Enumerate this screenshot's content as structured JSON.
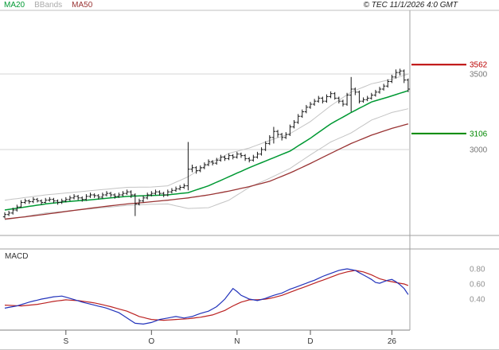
{
  "header": {
    "copyright": "© TEC 11/1/2026 4:0 GMT"
  },
  "legend": {
    "items": [
      {
        "label": "MA20",
        "color": "#009933"
      },
      {
        "label": "BBands",
        "color": "#aaaaaa"
      },
      {
        "label": "MA50",
        "color": "#993333"
      }
    ],
    "position": "top-left"
  },
  "chart_data": {
    "type": "candlestick",
    "title": "",
    "xlabel": "",
    "ylabel": "",
    "grid": true,
    "x_axis": {
      "ticks": [
        {
          "label": "S",
          "index": 15
        },
        {
          "label": "O",
          "index": 36
        },
        {
          "label": "N",
          "index": 57
        },
        {
          "label": "D",
          "index": 75
        },
        {
          "label": "26",
          "index": 95
        }
      ]
    },
    "price_panel": {
      "ylim": [
        2450,
        3940
      ],
      "gridlines": [
        3000,
        3500
      ],
      "colors": {
        "ma20": "#009933",
        "ma50": "#993333",
        "bbands": "#c4c4c4",
        "bars": "#1a1a1a"
      },
      "grid_labels": [
        {
          "text": "3562",
          "value": 3562,
          "color": "#bb0000",
          "line": true
        },
        {
          "text": "3500",
          "value": 3500,
          "color": "#777777",
          "line": false
        },
        {
          "text": "3106",
          "value": 3106,
          "color": "#008800",
          "line": true
        },
        {
          "text": "3000",
          "value": 3000,
          "color": "#777777",
          "line": false
        }
      ],
      "ohlc": [
        [
          2555,
          2585,
          2545,
          2570
        ],
        [
          2570,
          2595,
          2560,
          2580
        ],
        [
          2580,
          2615,
          2570,
          2600
        ],
        [
          2600,
          2635,
          2590,
          2620
        ],
        [
          2620,
          2665,
          2615,
          2650
        ],
        [
          2650,
          2675,
          2640,
          2660
        ],
        [
          2660,
          2670,
          2640,
          2655
        ],
        [
          2655,
          2685,
          2645,
          2670
        ],
        [
          2670,
          2680,
          2650,
          2660
        ],
        [
          2660,
          2670,
          2635,
          2650
        ],
        [
          2650,
          2680,
          2645,
          2665
        ],
        [
          2665,
          2685,
          2655,
          2670
        ],
        [
          2670,
          2680,
          2645,
          2660
        ],
        [
          2660,
          2670,
          2635,
          2650
        ],
        [
          2650,
          2675,
          2640,
          2660
        ],
        [
          2660,
          2685,
          2650,
          2670
        ],
        [
          2670,
          2695,
          2660,
          2680
        ],
        [
          2680,
          2705,
          2670,
          2690
        ],
        [
          2690,
          2700,
          2665,
          2680
        ],
        [
          2680,
          2690,
          2655,
          2670
        ],
        [
          2670,
          2705,
          2660,
          2690
        ],
        [
          2690,
          2715,
          2680,
          2700
        ],
        [
          2700,
          2710,
          2680,
          2695
        ],
        [
          2695,
          2705,
          2670,
          2685
        ],
        [
          2685,
          2715,
          2675,
          2700
        ],
        [
          2700,
          2725,
          2690,
          2710
        ],
        [
          2710,
          2720,
          2685,
          2700
        ],
        [
          2700,
          2710,
          2675,
          2690
        ],
        [
          2690,
          2715,
          2680,
          2700
        ],
        [
          2700,
          2725,
          2690,
          2710
        ],
        [
          2710,
          2735,
          2700,
          2720
        ],
        [
          2720,
          2730,
          2680,
          2700
        ],
        [
          2700,
          2710,
          2560,
          2640
        ],
        [
          2640,
          2675,
          2630,
          2660
        ],
        [
          2660,
          2695,
          2650,
          2680
        ],
        [
          2680,
          2715,
          2670,
          2700
        ],
        [
          2700,
          2725,
          2690,
          2710
        ],
        [
          2710,
          2735,
          2700,
          2720
        ],
        [
          2720,
          2730,
          2695,
          2710
        ],
        [
          2710,
          2720,
          2685,
          2700
        ],
        [
          2700,
          2735,
          2690,
          2720
        ],
        [
          2720,
          2745,
          2710,
          2730
        ],
        [
          2730,
          2755,
          2720,
          2740
        ],
        [
          2740,
          2765,
          2730,
          2750
        ],
        [
          2750,
          2775,
          2740,
          2760
        ],
        [
          2760,
          3050,
          2730,
          2870
        ],
        [
          2870,
          2900,
          2850,
          2880
        ],
        [
          2880,
          2890,
          2840,
          2860
        ],
        [
          2860,
          2895,
          2850,
          2880
        ],
        [
          2880,
          2915,
          2870,
          2900
        ],
        [
          2900,
          2935,
          2890,
          2920
        ],
        [
          2920,
          2930,
          2895,
          2910
        ],
        [
          2910,
          2945,
          2900,
          2930
        ],
        [
          2930,
          2965,
          2920,
          2950
        ],
        [
          2950,
          2960,
          2925,
          2940
        ],
        [
          2940,
          2975,
          2930,
          2960
        ],
        [
          2960,
          2970,
          2935,
          2950
        ],
        [
          2950,
          2985,
          2940,
          2970
        ],
        [
          2970,
          2980,
          2945,
          2960
        ],
        [
          2960,
          2970,
          2925,
          2940
        ],
        [
          2940,
          2950,
          2915,
          2930
        ],
        [
          2930,
          2965,
          2920,
          2950
        ],
        [
          2950,
          2985,
          2940,
          2970
        ],
        [
          2970,
          3015,
          2960,
          3000
        ],
        [
          3000,
          3055,
          2990,
          3040
        ],
        [
          3040,
          3095,
          3030,
          3080
        ],
        [
          3080,
          3150,
          3040,
          3120
        ],
        [
          3120,
          3130,
          3080,
          3100
        ],
        [
          3100,
          3110,
          3060,
          3080
        ],
        [
          3080,
          3115,
          3070,
          3100
        ],
        [
          3100,
          3165,
          3090,
          3150
        ],
        [
          3150,
          3195,
          3140,
          3180
        ],
        [
          3180,
          3235,
          3170,
          3220
        ],
        [
          3220,
          3265,
          3210,
          3250
        ],
        [
          3250,
          3295,
          3240,
          3280
        ],
        [
          3280,
          3315,
          3270,
          3300
        ],
        [
          3300,
          3335,
          3290,
          3320
        ],
        [
          3320,
          3355,
          3310,
          3340
        ],
        [
          3340,
          3350,
          3305,
          3320
        ],
        [
          3320,
          3365,
          3310,
          3350
        ],
        [
          3350,
          3385,
          3340,
          3370
        ],
        [
          3370,
          3380,
          3330,
          3340
        ],
        [
          3340,
          3350,
          3305,
          3320
        ],
        [
          3320,
          3330,
          3285,
          3300
        ],
        [
          3300,
          3375,
          3290,
          3360
        ],
        [
          3360,
          3480,
          3250,
          3400
        ],
        [
          3400,
          3410,
          3360,
          3380
        ],
        [
          3380,
          3390,
          3305,
          3320
        ],
        [
          3320,
          3345,
          3310,
          3330
        ],
        [
          3330,
          3355,
          3320,
          3340
        ],
        [
          3340,
          3375,
          3330,
          3360
        ],
        [
          3360,
          3395,
          3350,
          3380
        ],
        [
          3380,
          3415,
          3370,
          3400
        ],
        [
          3400,
          3435,
          3390,
          3420
        ],
        [
          3420,
          3465,
          3410,
          3450
        ],
        [
          3450,
          3495,
          3440,
          3480
        ],
        [
          3480,
          3530,
          3470,
          3510
        ],
        [
          3510,
          3535,
          3490,
          3520
        ],
        [
          3520,
          3530,
          3440,
          3460
        ],
        [
          3460,
          3470,
          3380,
          3400
        ]
      ],
      "ma20": [
        [
          0,
          2600
        ],
        [
          5,
          2620
        ],
        [
          10,
          2640
        ],
        [
          15,
          2655
        ],
        [
          20,
          2665
        ],
        [
          25,
          2678
        ],
        [
          30,
          2690
        ],
        [
          35,
          2695
        ],
        [
          40,
          2700
        ],
        [
          45,
          2715
        ],
        [
          50,
          2760
        ],
        [
          55,
          2820
        ],
        [
          60,
          2880
        ],
        [
          65,
          2935
        ],
        [
          70,
          2990
        ],
        [
          75,
          3075
        ],
        [
          80,
          3170
        ],
        [
          85,
          3245
        ],
        [
          90,
          3315
        ],
        [
          95,
          3355
        ],
        [
          99,
          3390
        ]
      ],
      "ma50": [
        [
          0,
          2540
        ],
        [
          5,
          2555
        ],
        [
          10,
          2572
        ],
        [
          15,
          2590
        ],
        [
          20,
          2608
        ],
        [
          25,
          2625
        ],
        [
          30,
          2640
        ],
        [
          35,
          2652
        ],
        [
          40,
          2665
        ],
        [
          45,
          2680
        ],
        [
          50,
          2700
        ],
        [
          55,
          2725
        ],
        [
          60,
          2755
        ],
        [
          65,
          2790
        ],
        [
          70,
          2845
        ],
        [
          75,
          2908
        ],
        [
          80,
          2975
        ],
        [
          85,
          3040
        ],
        [
          90,
          3095
        ],
        [
          95,
          3140
        ],
        [
          99,
          3170
        ]
      ],
      "bb_upper": [
        [
          0,
          2665
        ],
        [
          10,
          2700
        ],
        [
          20,
          2725
        ],
        [
          30,
          2750
        ],
        [
          36,
          2752
        ],
        [
          40,
          2760
        ],
        [
          45,
          2820
        ],
        [
          50,
          2905
        ],
        [
          55,
          2975
        ],
        [
          60,
          3010
        ],
        [
          65,
          3060
        ],
        [
          70,
          3105
        ],
        [
          75,
          3185
        ],
        [
          80,
          3290
        ],
        [
          85,
          3380
        ],
        [
          90,
          3435
        ],
        [
          95,
          3465
        ],
        [
          99,
          3500
        ]
      ],
      "bb_lower": [
        [
          0,
          2535
        ],
        [
          10,
          2580
        ],
        [
          20,
          2605
        ],
        [
          30,
          2630
        ],
        [
          36,
          2638
        ],
        [
          40,
          2640
        ],
        [
          45,
          2610
        ],
        [
          50,
          2615
        ],
        [
          55,
          2665
        ],
        [
          60,
          2750
        ],
        [
          65,
          2810
        ],
        [
          70,
          2875
        ],
        [
          75,
          2965
        ],
        [
          80,
          3050
        ],
        [
          85,
          3110
        ],
        [
          90,
          3195
        ],
        [
          95,
          3245
        ],
        [
          99,
          3270
        ]
      ]
    },
    "macd_panel": {
      "label": "MACD",
      "ylim": [
        0,
        1.05
      ],
      "colors": {
        "macd": "#2233bb",
        "signal": "#bb2222"
      },
      "scale_labels": [
        {
          "text": "0.80",
          "value": 0.8
        },
        {
          "text": "0.60",
          "value": 0.6
        },
        {
          "text": "0.40",
          "value": 0.4
        }
      ],
      "macd": [
        [
          0,
          0.28
        ],
        [
          3,
          0.31
        ],
        [
          6,
          0.36
        ],
        [
          9,
          0.4
        ],
        [
          12,
          0.43
        ],
        [
          14,
          0.44
        ],
        [
          16,
          0.41
        ],
        [
          19,
          0.36
        ],
        [
          22,
          0.32
        ],
        [
          25,
          0.28
        ],
        [
          28,
          0.22
        ],
        [
          30,
          0.15
        ],
        [
          32,
          0.08
        ],
        [
          34,
          0.07
        ],
        [
          36,
          0.09
        ],
        [
          38,
          0.13
        ],
        [
          40,
          0.15
        ],
        [
          42,
          0.17
        ],
        [
          44,
          0.15
        ],
        [
          46,
          0.17
        ],
        [
          48,
          0.21
        ],
        [
          50,
          0.24
        ],
        [
          52,
          0.3
        ],
        [
          54,
          0.4
        ],
        [
          56,
          0.54
        ],
        [
          57,
          0.5
        ],
        [
          58,
          0.45
        ],
        [
          60,
          0.4
        ],
        [
          62,
          0.38
        ],
        [
          64,
          0.41
        ],
        [
          66,
          0.45
        ],
        [
          68,
          0.48
        ],
        [
          70,
          0.53
        ],
        [
          72,
          0.57
        ],
        [
          74,
          0.61
        ],
        [
          76,
          0.65
        ],
        [
          78,
          0.7
        ],
        [
          80,
          0.74
        ],
        [
          82,
          0.78
        ],
        [
          84,
          0.8
        ],
        [
          86,
          0.78
        ],
        [
          88,
          0.72
        ],
        [
          90,
          0.66
        ],
        [
          91,
          0.62
        ],
        [
          92,
          0.61
        ],
        [
          93,
          0.63
        ],
        [
          94,
          0.65
        ],
        [
          95,
          0.66
        ],
        [
          96,
          0.63
        ],
        [
          97,
          0.59
        ],
        [
          98,
          0.54
        ],
        [
          99,
          0.46
        ]
      ],
      "signal": [
        [
          0,
          0.32
        ],
        [
          4,
          0.31
        ],
        [
          8,
          0.33
        ],
        [
          12,
          0.37
        ],
        [
          15,
          0.39
        ],
        [
          18,
          0.38
        ],
        [
          22,
          0.35
        ],
        [
          26,
          0.3
        ],
        [
          30,
          0.24
        ],
        [
          33,
          0.17
        ],
        [
          36,
          0.13
        ],
        [
          39,
          0.12
        ],
        [
          42,
          0.13
        ],
        [
          45,
          0.14
        ],
        [
          48,
          0.16
        ],
        [
          51,
          0.19
        ],
        [
          54,
          0.25
        ],
        [
          56,
          0.31
        ],
        [
          58,
          0.36
        ],
        [
          60,
          0.39
        ],
        [
          62,
          0.39
        ],
        [
          64,
          0.4
        ],
        [
          66,
          0.42
        ],
        [
          68,
          0.45
        ],
        [
          70,
          0.49
        ],
        [
          72,
          0.53
        ],
        [
          74,
          0.57
        ],
        [
          76,
          0.61
        ],
        [
          78,
          0.65
        ],
        [
          80,
          0.69
        ],
        [
          82,
          0.73
        ],
        [
          84,
          0.76
        ],
        [
          86,
          0.78
        ],
        [
          88,
          0.76
        ],
        [
          90,
          0.72
        ],
        [
          92,
          0.67
        ],
        [
          94,
          0.64
        ],
        [
          96,
          0.62
        ],
        [
          98,
          0.6
        ],
        [
          99,
          0.58
        ]
      ]
    }
  }
}
